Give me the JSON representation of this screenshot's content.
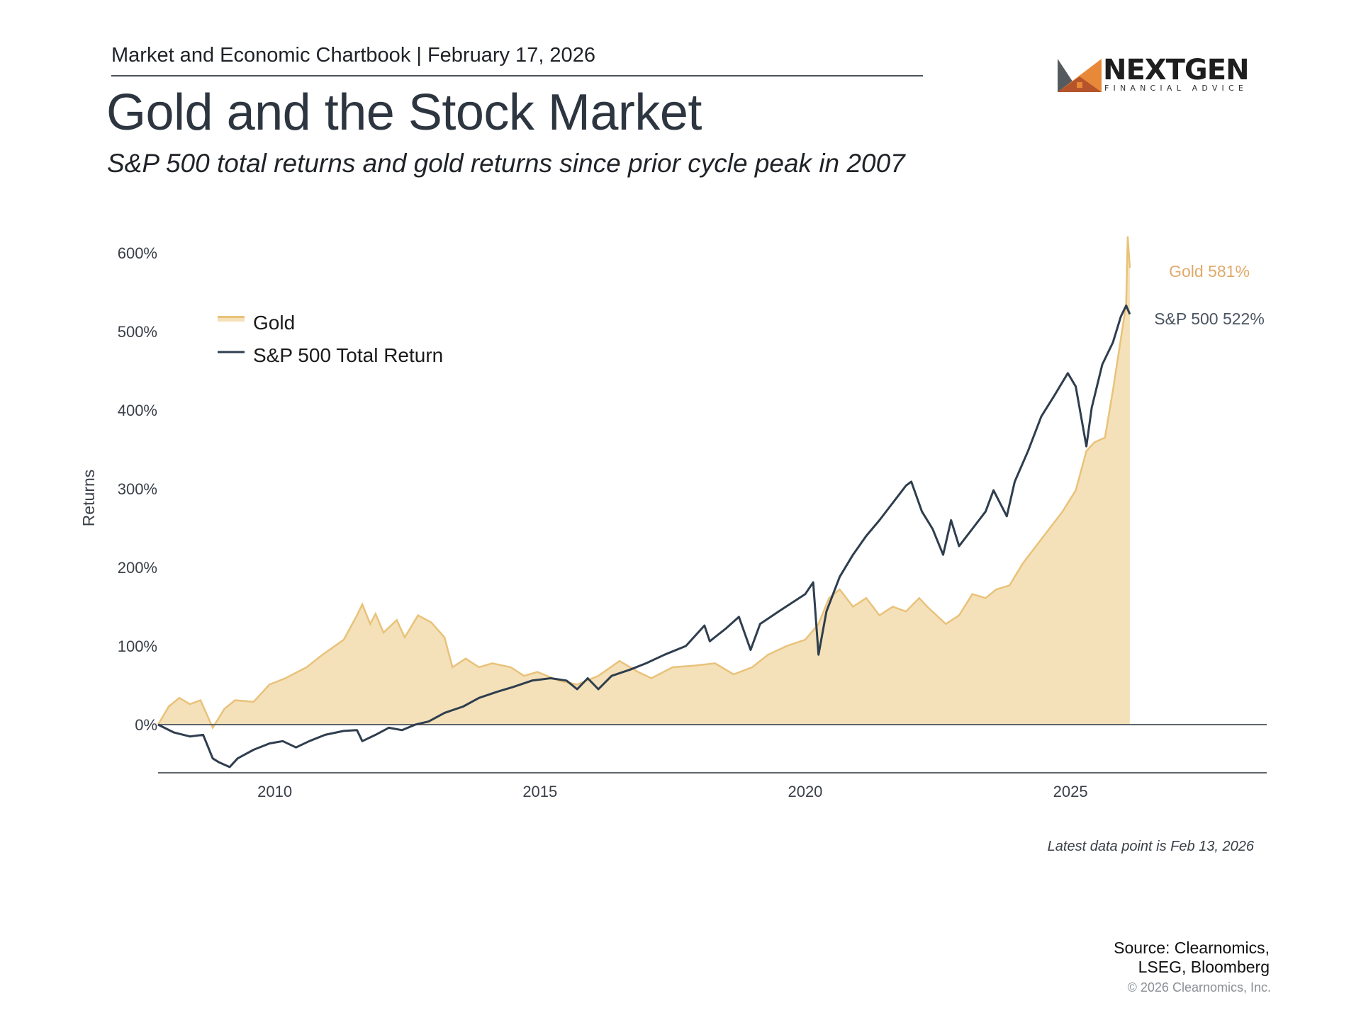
{
  "header": {
    "chartbook": "Market and Economic Chartbook | February 17, 2026",
    "title": "Gold and the Stock Market",
    "subtitle": "S&P 500 total returns and gold returns since prior cycle peak in 2007"
  },
  "logo": {
    "name": "NEXTGEN",
    "tagline": "FINANCIAL ADVICE",
    "colors": {
      "dark": "#555a5f",
      "orange": "#e8893a",
      "rust": "#b5542a"
    }
  },
  "colors": {
    "gold_line": "#e9c27a",
    "gold_fill": "#f4e1b9",
    "gold_label": "#e0a96a",
    "sp500_line": "#2f3e4e",
    "axis": "#5f656b",
    "tick_text": "#3a4048"
  },
  "chart_data": {
    "type": "area",
    "title": "Gold and the Stock Market",
    "subtitle": "S&P 500 total returns and gold returns since prior cycle peak in 2007",
    "xlabel": "",
    "ylabel": "Returns",
    "xlim": [
      2007.8,
      2028.7
    ],
    "ylim": [
      -60,
      600
    ],
    "x_ticks": [
      2010,
      2015,
      2020,
      2025
    ],
    "x_tick_labels": [
      "2010",
      "2015",
      "2020",
      "2025"
    ],
    "y_ticks": [
      0,
      100,
      200,
      300,
      400,
      500,
      600
    ],
    "y_tick_labels": [
      "0%",
      "100%",
      "200%",
      "300%",
      "400%",
      "500%",
      "600%"
    ],
    "grid": false,
    "legend": {
      "placement": "top-left",
      "entries": [
        "Gold",
        "S&P 500 Total Return"
      ]
    },
    "end_labels": [
      {
        "series": "Gold",
        "text": "Gold 581%",
        "value": 581
      },
      {
        "series": "S&P 500 Total Return",
        "text": "S&P 500 522%",
        "value": 522
      }
    ],
    "footnote": "Latest data point is Feb 13, 2026",
    "series": [
      {
        "name": "Gold",
        "style": "area",
        "x": [
          2007.8,
          2008.0,
          2008.2,
          2008.4,
          2008.6,
          2008.83,
          2009.05,
          2009.25,
          2009.6,
          2009.9,
          2010.2,
          2010.6,
          2010.9,
          2011.3,
          2011.55,
          2011.65,
          2011.8,
          2011.9,
          2012.05,
          2012.3,
          2012.45,
          2012.7,
          2012.95,
          2013.2,
          2013.35,
          2013.6,
          2013.85,
          2014.1,
          2014.45,
          2014.7,
          2014.95,
          2015.35,
          2015.7,
          2016.1,
          2016.5,
          2016.85,
          2017.1,
          2017.5,
          2017.9,
          2018.3,
          2018.65,
          2019.0,
          2019.3,
          2019.65,
          2020.0,
          2020.25,
          2020.45,
          2020.65,
          2020.9,
          2021.15,
          2021.4,
          2021.65,
          2021.9,
          2022.15,
          2022.3,
          2022.65,
          2022.9,
          2023.15,
          2023.4,
          2023.6,
          2023.85,
          2024.1,
          2024.35,
          2024.6,
          2024.85,
          2025.1,
          2025.3,
          2025.45,
          2025.65,
          2025.8,
          2025.9,
          2026.05,
          2026.08,
          2026.12
        ],
        "values": [
          0,
          23,
          34,
          26,
          31,
          -4,
          20,
          31,
          29,
          51,
          59,
          73,
          89,
          108,
          139,
          153,
          128,
          141,
          117,
          133,
          111,
          139,
          130,
          111,
          73,
          84,
          73,
          78,
          73,
          62,
          67,
          56,
          51,
          62,
          81,
          67,
          59,
          73,
          75,
          78,
          64,
          73,
          89,
          100,
          108,
          128,
          161,
          172,
          150,
          161,
          139,
          150,
          144,
          161,
          150,
          128,
          139,
          166,
          161,
          172,
          177,
          205,
          227,
          249,
          271,
          298,
          348,
          359,
          365,
          425,
          469,
          535,
          621,
          581
        ]
      },
      {
        "name": "S&P 500 Total Return",
        "style": "line",
        "x": [
          2007.8,
          2008.1,
          2008.4,
          2008.65,
          2008.83,
          2008.95,
          2009.15,
          2009.3,
          2009.6,
          2009.9,
          2010.15,
          2010.4,
          2010.65,
          2010.95,
          2011.3,
          2011.55,
          2011.65,
          2011.9,
          2012.15,
          2012.4,
          2012.65,
          2012.9,
          2013.2,
          2013.55,
          2013.85,
          2014.2,
          2014.5,
          2014.85,
          2015.2,
          2015.5,
          2015.7,
          2015.9,
          2016.1,
          2016.35,
          2016.7,
          2017.0,
          2017.35,
          2017.75,
          2018.1,
          2018.2,
          2018.5,
          2018.75,
          2018.97,
          2019.15,
          2019.5,
          2019.75,
          2020.0,
          2020.15,
          2020.25,
          2020.4,
          2020.65,
          2020.9,
          2021.15,
          2021.4,
          2021.65,
          2021.9,
          2022.0,
          2022.2,
          2022.4,
          2022.6,
          2022.75,
          2022.9,
          2023.15,
          2023.4,
          2023.55,
          2023.8,
          2023.95,
          2024.2,
          2024.45,
          2024.7,
          2024.95,
          2025.1,
          2025.3,
          2025.4,
          2025.6,
          2025.8,
          2025.95,
          2026.05,
          2026.12
        ],
        "values": [
          0,
          -10,
          -15,
          -13,
          -43,
          -48,
          -54,
          -43,
          -32,
          -24,
          -21,
          -29,
          -21,
          -13,
          -8,
          -7,
          -21,
          -13,
          -4,
          -7,
          0,
          4,
          15,
          23,
          34,
          42,
          48,
          56,
          59,
          56,
          45,
          59,
          45,
          62,
          70,
          78,
          89,
          100,
          126,
          106,
          122,
          137,
          95,
          128,
          144,
          155,
          166,
          181,
          89,
          144,
          188,
          216,
          240,
          260,
          282,
          304,
          309,
          271,
          249,
          216,
          260,
          227,
          249,
          271,
          298,
          265,
          309,
          348,
          392,
          419,
          447,
          430,
          354,
          403,
          458,
          486,
          519,
          533,
          522
        ]
      }
    ]
  },
  "footer": {
    "footnote": "Latest data point is Feb 13, 2026",
    "source_line1": "Source: Clearnomics,",
    "source_line2": "LSEG, Bloomberg",
    "copyright": "© 2026 Clearnomics, Inc."
  }
}
